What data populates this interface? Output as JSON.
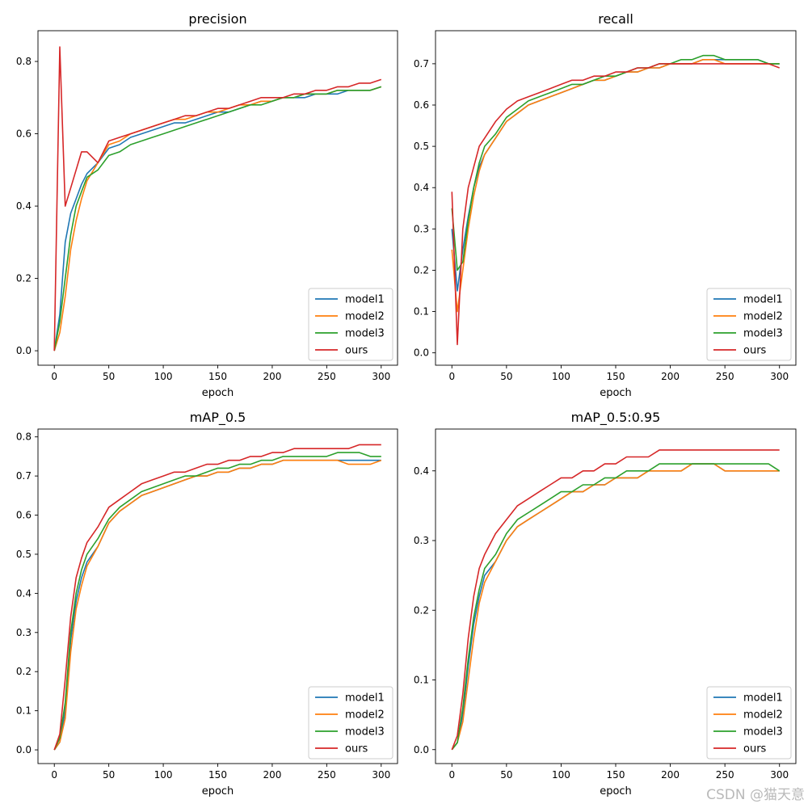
{
  "watermark": "CSDN @猫天意",
  "colors": {
    "model1": "#1f77b4",
    "model2": "#ff7f0e",
    "model3": "#2ca02c",
    "ours": "#d62728"
  },
  "chart_data": [
    {
      "type": "line",
      "title": "precision",
      "xlabel": "epoch",
      "ylabel": "",
      "xlim": [
        -15,
        315
      ],
      "ylim": [
        -0.04,
        0.885
      ],
      "xticks": [
        0,
        50,
        100,
        150,
        200,
        250,
        300
      ],
      "yticks": [
        0.0,
        0.2,
        0.4,
        0.6,
        0.8
      ],
      "ytick_labels": [
        "0.0",
        "0.2",
        "0.4",
        "0.6",
        "0.8"
      ],
      "legend_position": "lower-right",
      "grid": false,
      "x": [
        0,
        5,
        10,
        15,
        20,
        25,
        30,
        40,
        50,
        60,
        70,
        80,
        90,
        100,
        110,
        120,
        130,
        140,
        150,
        160,
        170,
        180,
        190,
        200,
        210,
        220,
        230,
        240,
        250,
        260,
        270,
        280,
        290,
        300
      ],
      "series": [
        {
          "name": "model1",
          "color_key": "model1",
          "values": [
            0,
            0.1,
            0.3,
            0.38,
            0.42,
            0.46,
            0.49,
            0.52,
            0.56,
            0.57,
            0.59,
            0.6,
            0.61,
            0.62,
            0.63,
            0.63,
            0.64,
            0.65,
            0.66,
            0.66,
            0.67,
            0.68,
            0.69,
            0.69,
            0.7,
            0.7,
            0.7,
            0.71,
            0.71,
            0.71,
            0.72,
            0.72,
            0.72,
            0.73
          ]
        },
        {
          "name": "model2",
          "color_key": "model2",
          "values": [
            0,
            0.05,
            0.15,
            0.28,
            0.36,
            0.42,
            0.47,
            0.52,
            0.57,
            0.58,
            0.6,
            0.61,
            0.62,
            0.63,
            0.64,
            0.64,
            0.65,
            0.66,
            0.66,
            0.67,
            0.68,
            0.68,
            0.69,
            0.69,
            0.7,
            0.7,
            0.71,
            0.71,
            0.71,
            0.72,
            0.72,
            0.72,
            0.72,
            0.73
          ]
        },
        {
          "name": "model3",
          "color_key": "model3",
          "values": [
            0,
            0.08,
            0.2,
            0.32,
            0.4,
            0.44,
            0.48,
            0.5,
            0.54,
            0.55,
            0.57,
            0.58,
            0.59,
            0.6,
            0.61,
            0.62,
            0.63,
            0.64,
            0.65,
            0.66,
            0.67,
            0.68,
            0.68,
            0.69,
            0.7,
            0.7,
            0.71,
            0.71,
            0.71,
            0.72,
            0.72,
            0.72,
            0.72,
            0.73
          ]
        },
        {
          "name": "ours",
          "color_key": "ours",
          "values": [
            0,
            0.84,
            0.4,
            0.45,
            0.5,
            0.55,
            0.55,
            0.52,
            0.58,
            0.59,
            0.6,
            0.61,
            0.62,
            0.63,
            0.64,
            0.65,
            0.65,
            0.66,
            0.67,
            0.67,
            0.68,
            0.69,
            0.7,
            0.7,
            0.7,
            0.71,
            0.71,
            0.72,
            0.72,
            0.73,
            0.73,
            0.74,
            0.74,
            0.75
          ]
        }
      ]
    },
    {
      "type": "line",
      "title": "recall",
      "xlabel": "epoch",
      "ylabel": "",
      "xlim": [
        -15,
        315
      ],
      "ylim": [
        -0.03,
        0.78
      ],
      "xticks": [
        0,
        50,
        100,
        150,
        200,
        250,
        300
      ],
      "yticks": [
        0.0,
        0.1,
        0.2,
        0.3,
        0.4,
        0.5,
        0.6,
        0.7
      ],
      "ytick_labels": [
        "0.0",
        "0.1",
        "0.2",
        "0.3",
        "0.4",
        "0.5",
        "0.6",
        "0.7"
      ],
      "legend_position": "lower-right",
      "grid": false,
      "x": [
        0,
        5,
        10,
        15,
        20,
        25,
        30,
        40,
        50,
        60,
        70,
        80,
        90,
        100,
        110,
        120,
        130,
        140,
        150,
        160,
        170,
        180,
        190,
        200,
        210,
        220,
        230,
        240,
        250,
        260,
        270,
        280,
        290,
        300
      ],
      "series": [
        {
          "name": "model1",
          "color_key": "model1",
          "values": [
            0.3,
            0.15,
            0.25,
            0.33,
            0.4,
            0.45,
            0.48,
            0.52,
            0.56,
            0.58,
            0.6,
            0.61,
            0.62,
            0.63,
            0.64,
            0.65,
            0.66,
            0.66,
            0.67,
            0.68,
            0.68,
            0.69,
            0.69,
            0.7,
            0.7,
            0.7,
            0.71,
            0.71,
            0.71,
            0.71,
            0.71,
            0.71,
            0.7,
            0.7
          ]
        },
        {
          "name": "model2",
          "color_key": "model2",
          "values": [
            0.25,
            0.1,
            0.2,
            0.3,
            0.38,
            0.44,
            0.48,
            0.52,
            0.56,
            0.58,
            0.6,
            0.61,
            0.62,
            0.63,
            0.64,
            0.65,
            0.66,
            0.66,
            0.67,
            0.68,
            0.68,
            0.69,
            0.69,
            0.7,
            0.7,
            0.7,
            0.71,
            0.71,
            0.7,
            0.7,
            0.7,
            0.7,
            0.7,
            0.7
          ]
        },
        {
          "name": "model3",
          "color_key": "model3",
          "values": [
            0.35,
            0.2,
            0.22,
            0.32,
            0.4,
            0.46,
            0.5,
            0.53,
            0.57,
            0.59,
            0.61,
            0.62,
            0.63,
            0.64,
            0.65,
            0.65,
            0.66,
            0.67,
            0.67,
            0.68,
            0.69,
            0.69,
            0.7,
            0.7,
            0.71,
            0.71,
            0.72,
            0.72,
            0.71,
            0.71,
            0.71,
            0.71,
            0.7,
            0.7
          ]
        },
        {
          "name": "ours",
          "color_key": "ours",
          "values": [
            0.39,
            0.02,
            0.3,
            0.4,
            0.45,
            0.5,
            0.52,
            0.56,
            0.59,
            0.61,
            0.62,
            0.63,
            0.64,
            0.65,
            0.66,
            0.66,
            0.67,
            0.67,
            0.68,
            0.68,
            0.69,
            0.69,
            0.7,
            0.7,
            0.7,
            0.7,
            0.7,
            0.7,
            0.7,
            0.7,
            0.7,
            0.7,
            0.7,
            0.69
          ]
        }
      ]
    },
    {
      "type": "line",
      "title": "mAP_0.5",
      "xlabel": "epoch",
      "ylabel": "",
      "xlim": [
        -15,
        315
      ],
      "ylim": [
        -0.035,
        0.82
      ],
      "xticks": [
        0,
        50,
        100,
        150,
        200,
        250,
        300
      ],
      "yticks": [
        0.0,
        0.1,
        0.2,
        0.3,
        0.4,
        0.5,
        0.6,
        0.7,
        0.8
      ],
      "ytick_labels": [
        "0.0",
        "0.1",
        "0.2",
        "0.3",
        "0.4",
        "0.5",
        "0.6",
        "0.7",
        "0.8"
      ],
      "legend_position": "lower-right",
      "grid": false,
      "x": [
        0,
        5,
        10,
        15,
        20,
        25,
        30,
        40,
        50,
        60,
        70,
        80,
        90,
        100,
        110,
        120,
        130,
        140,
        150,
        160,
        170,
        180,
        190,
        200,
        210,
        220,
        230,
        240,
        250,
        260,
        270,
        280,
        290,
        300
      ],
      "series": [
        {
          "name": "model1",
          "color_key": "model1",
          "values": [
            0,
            0.02,
            0.1,
            0.28,
            0.38,
            0.44,
            0.48,
            0.52,
            0.58,
            0.61,
            0.63,
            0.65,
            0.66,
            0.67,
            0.68,
            0.69,
            0.7,
            0.7,
            0.71,
            0.71,
            0.72,
            0.72,
            0.73,
            0.73,
            0.74,
            0.74,
            0.74,
            0.74,
            0.74,
            0.74,
            0.74,
            0.74,
            0.74,
            0.74
          ]
        },
        {
          "name": "model2",
          "color_key": "model2",
          "values": [
            0,
            0.02,
            0.08,
            0.25,
            0.36,
            0.42,
            0.47,
            0.52,
            0.58,
            0.61,
            0.63,
            0.65,
            0.66,
            0.67,
            0.68,
            0.69,
            0.7,
            0.7,
            0.71,
            0.71,
            0.72,
            0.72,
            0.73,
            0.73,
            0.74,
            0.74,
            0.74,
            0.74,
            0.74,
            0.74,
            0.73,
            0.73,
            0.73,
            0.74
          ]
        },
        {
          "name": "model3",
          "color_key": "model3",
          "values": [
            0,
            0.03,
            0.12,
            0.3,
            0.4,
            0.46,
            0.5,
            0.54,
            0.59,
            0.62,
            0.64,
            0.66,
            0.67,
            0.68,
            0.69,
            0.7,
            0.7,
            0.71,
            0.72,
            0.72,
            0.73,
            0.73,
            0.74,
            0.74,
            0.75,
            0.75,
            0.75,
            0.75,
            0.75,
            0.76,
            0.76,
            0.76,
            0.75,
            0.75
          ]
        },
        {
          "name": "ours",
          "color_key": "ours",
          "values": [
            0,
            0.04,
            0.18,
            0.34,
            0.44,
            0.49,
            0.53,
            0.57,
            0.62,
            0.64,
            0.66,
            0.68,
            0.69,
            0.7,
            0.71,
            0.71,
            0.72,
            0.73,
            0.73,
            0.74,
            0.74,
            0.75,
            0.75,
            0.76,
            0.76,
            0.77,
            0.77,
            0.77,
            0.77,
            0.77,
            0.77,
            0.78,
            0.78,
            0.78
          ]
        }
      ]
    },
    {
      "type": "line",
      "title": "mAP_0.5:0.95",
      "xlabel": "epoch",
      "ylabel": "",
      "xlim": [
        -15,
        315
      ],
      "ylim": [
        -0.02,
        0.46
      ],
      "xticks": [
        0,
        50,
        100,
        150,
        200,
        250,
        300
      ],
      "yticks": [
        0.0,
        0.1,
        0.2,
        0.3,
        0.4
      ],
      "ytick_labels": [
        "0.0",
        "0.1",
        "0.2",
        "0.3",
        "0.4"
      ],
      "legend_position": "lower-right",
      "grid": false,
      "x": [
        0,
        5,
        10,
        15,
        20,
        25,
        30,
        40,
        50,
        60,
        70,
        80,
        90,
        100,
        110,
        120,
        130,
        140,
        150,
        160,
        170,
        180,
        190,
        200,
        210,
        220,
        230,
        240,
        250,
        260,
        270,
        280,
        290,
        300
      ],
      "series": [
        {
          "name": "model1",
          "color_key": "model1",
          "values": [
            0,
            0.01,
            0.05,
            0.12,
            0.18,
            0.22,
            0.25,
            0.27,
            0.3,
            0.32,
            0.33,
            0.34,
            0.35,
            0.36,
            0.37,
            0.37,
            0.38,
            0.38,
            0.39,
            0.39,
            0.39,
            0.4,
            0.4,
            0.4,
            0.4,
            0.41,
            0.41,
            0.41,
            0.4,
            0.4,
            0.4,
            0.4,
            0.4,
            0.4
          ]
        },
        {
          "name": "model2",
          "color_key": "model2",
          "values": [
            0,
            0.01,
            0.04,
            0.1,
            0.16,
            0.21,
            0.24,
            0.27,
            0.3,
            0.32,
            0.33,
            0.34,
            0.35,
            0.36,
            0.37,
            0.37,
            0.38,
            0.38,
            0.39,
            0.39,
            0.39,
            0.4,
            0.4,
            0.4,
            0.4,
            0.41,
            0.41,
            0.41,
            0.4,
            0.4,
            0.4,
            0.4,
            0.4,
            0.4
          ]
        },
        {
          "name": "model3",
          "color_key": "model3",
          "values": [
            0,
            0.01,
            0.06,
            0.13,
            0.19,
            0.23,
            0.26,
            0.28,
            0.31,
            0.33,
            0.34,
            0.35,
            0.36,
            0.37,
            0.37,
            0.38,
            0.38,
            0.39,
            0.39,
            0.4,
            0.4,
            0.4,
            0.41,
            0.41,
            0.41,
            0.41,
            0.41,
            0.41,
            0.41,
            0.41,
            0.41,
            0.41,
            0.41,
            0.4
          ]
        },
        {
          "name": "ours",
          "color_key": "ours",
          "values": [
            0,
            0.02,
            0.08,
            0.16,
            0.22,
            0.26,
            0.28,
            0.31,
            0.33,
            0.35,
            0.36,
            0.37,
            0.38,
            0.39,
            0.39,
            0.4,
            0.4,
            0.41,
            0.41,
            0.42,
            0.42,
            0.42,
            0.43,
            0.43,
            0.43,
            0.43,
            0.43,
            0.43,
            0.43,
            0.43,
            0.43,
            0.43,
            0.43,
            0.43
          ]
        }
      ]
    }
  ]
}
